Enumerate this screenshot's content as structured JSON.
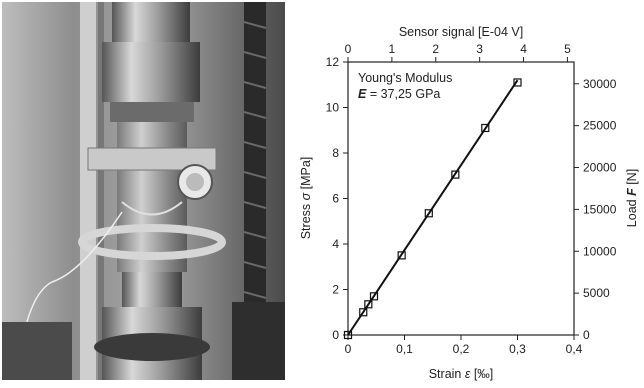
{
  "photo": {
    "subject": "specimen-in-testing-machine"
  },
  "chart_data": {
    "type": "line",
    "x_bottom": {
      "label_prefix": "Strain ",
      "label_symbol": "ε",
      "label_unit": " [‰]",
      "range": [
        0,
        0.4
      ],
      "ticks": [
        "0",
        "0,1",
        "0,2",
        "0,3",
        "0,4"
      ]
    },
    "x_top": {
      "label": "Sensor signal [E-04 V]",
      "range": [
        0,
        5.15
      ],
      "ticks": [
        "0",
        "1",
        "2",
        "3",
        "4",
        "5"
      ]
    },
    "y_left": {
      "label_prefix": "Stress ",
      "label_symbol": "σ",
      "label_unit": " [MPa]",
      "range": [
        0,
        12
      ],
      "ticks": [
        "0",
        "2",
        "4",
        "6",
        "8",
        "10",
        "12"
      ]
    },
    "y_right": {
      "label_prefix": "Load ",
      "label_symbol": "F",
      "label_unit": " [N]",
      "range": [
        0,
        32600
      ],
      "ticks": [
        "0",
        "5000",
        "10000",
        "15000",
        "20000",
        "25000",
        "30000"
      ]
    },
    "annotation": {
      "line1": "Young's Modulus",
      "symbol": "E",
      "value": " = 37,25 GPa"
    },
    "fit_line": {
      "x": [
        0,
        0.3
      ],
      "y": [
        0,
        11.2
      ]
    },
    "points": {
      "x": [
        0,
        0.027,
        0.036,
        0.046,
        0.095,
        0.143,
        0.19,
        0.243,
        0.3
      ],
      "y": [
        0,
        1.0,
        1.35,
        1.7,
        3.5,
        5.35,
        7.05,
        9.1,
        11.1
      ]
    },
    "grid": false,
    "legend": "none"
  }
}
